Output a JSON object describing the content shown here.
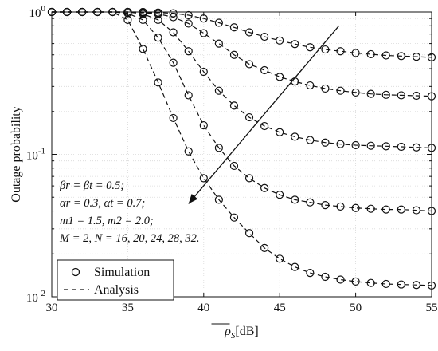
{
  "chart_data": {
    "type": "line",
    "xlabel_base": "ρ",
    "xlabel_sub": "S",
    "xlabel_unit": "[dB]",
    "ylabel": "Outage probability",
    "xlim": [
      30,
      55
    ],
    "ylim": [
      0.01,
      1
    ],
    "yscale": "log",
    "grid": true,
    "x_ticks": [
      "30",
      "35",
      "40",
      "45",
      "50",
      "55"
    ],
    "y_tick_labels": [
      {
        "value": 1,
        "base": "10",
        "exp": "0"
      },
      {
        "value": 0.1,
        "base": "10",
        "exp": "-1"
      },
      {
        "value": 0.01,
        "base": "10",
        "exp": "-2"
      }
    ],
    "legend_position": "bottom-left",
    "legend": [
      {
        "label": "Simulation",
        "style": "circle"
      },
      {
        "label": "Analysis",
        "style": "dashed"
      }
    ],
    "annotation_lines": [
      "βr = βt = 0.5;",
      "αr = 0.3, αt = 0.7;",
      "m1 = 1.5, m2 = 2.0;",
      "M = 2,  N = 16, 20, 24, 28, 32."
    ],
    "arrow": {
      "from": [
        48.9,
        0.8
      ],
      "to": [
        39.0,
        0.045
      ]
    },
    "x": [
      30,
      31,
      32,
      33,
      34,
      35,
      36,
      37,
      38,
      39,
      40,
      41,
      42,
      43,
      44,
      45,
      46,
      47,
      48,
      49,
      50,
      51,
      52,
      53,
      54,
      55
    ],
    "series": [
      {
        "values": [
          1,
          1,
          1,
          1,
          1,
          1,
          1,
          0.99,
          0.98,
          0.95,
          0.9,
          0.84,
          0.78,
          0.72,
          0.67,
          0.63,
          0.595,
          0.565,
          0.545,
          0.53,
          0.515,
          0.505,
          0.495,
          0.49,
          0.485,
          0.48
        ]
      },
      {
        "values": [
          1,
          1,
          1,
          1,
          1,
          1,
          0.99,
          0.97,
          0.92,
          0.83,
          0.71,
          0.6,
          0.5,
          0.43,
          0.39,
          0.35,
          0.325,
          0.305,
          0.29,
          0.28,
          0.272,
          0.266,
          0.262,
          0.26,
          0.258,
          0.256
        ]
      },
      {
        "values": [
          1,
          1,
          1,
          1,
          1,
          1,
          0.97,
          0.88,
          0.72,
          0.53,
          0.38,
          0.28,
          0.22,
          0.182,
          0.158,
          0.143,
          0.133,
          0.126,
          0.121,
          0.118,
          0.116,
          0.115,
          0.114,
          0.113,
          0.112,
          0.111
        ]
      },
      {
        "values": [
          1,
          1,
          1,
          1,
          1,
          0.98,
          0.88,
          0.66,
          0.44,
          0.26,
          0.16,
          0.111,
          0.083,
          0.068,
          0.058,
          0.052,
          0.048,
          0.046,
          0.044,
          0.043,
          0.042,
          0.0415,
          0.041,
          0.041,
          0.0405,
          0.04
        ]
      },
      {
        "values": [
          1,
          1,
          1,
          1,
          1,
          0.88,
          0.55,
          0.32,
          0.18,
          0.105,
          0.068,
          0.048,
          0.036,
          0.028,
          0.022,
          0.0185,
          0.0162,
          0.0147,
          0.0138,
          0.0132,
          0.0128,
          0.0125,
          0.0123,
          0.0122,
          0.0121,
          0.012
        ]
      }
    ]
  }
}
